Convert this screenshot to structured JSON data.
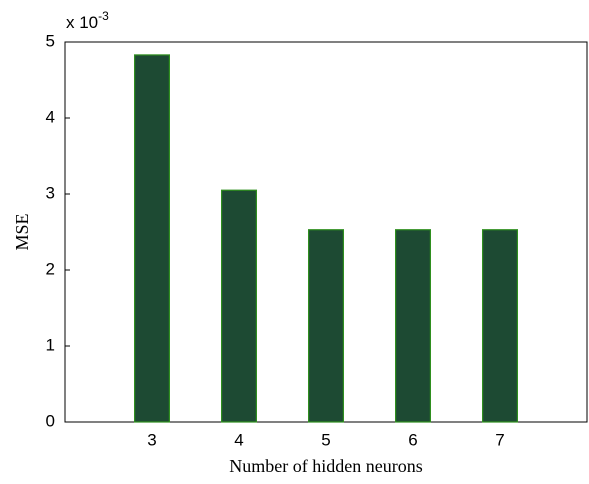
{
  "chart_data": {
    "type": "bar",
    "xlabel": "Number of hidden neurons",
    "ylabel": "MSE",
    "y_multiplier": {
      "base": "x 10",
      "exponent": "-3"
    },
    "x": [
      3,
      4,
      5,
      6,
      7
    ],
    "values": [
      4.83,
      3.05,
      2.53,
      2.53,
      2.53
    ],
    "color": "#1d4a33",
    "edge_color": "#2f8f1f",
    "bar_width": 0.4,
    "xlim": [
      2,
      8
    ],
    "xticks": [
      3,
      4,
      5,
      6,
      7
    ],
    "ylim": [
      0,
      5
    ],
    "yticks": [
      0,
      1,
      2,
      3,
      4,
      5
    ],
    "grid": false
  }
}
